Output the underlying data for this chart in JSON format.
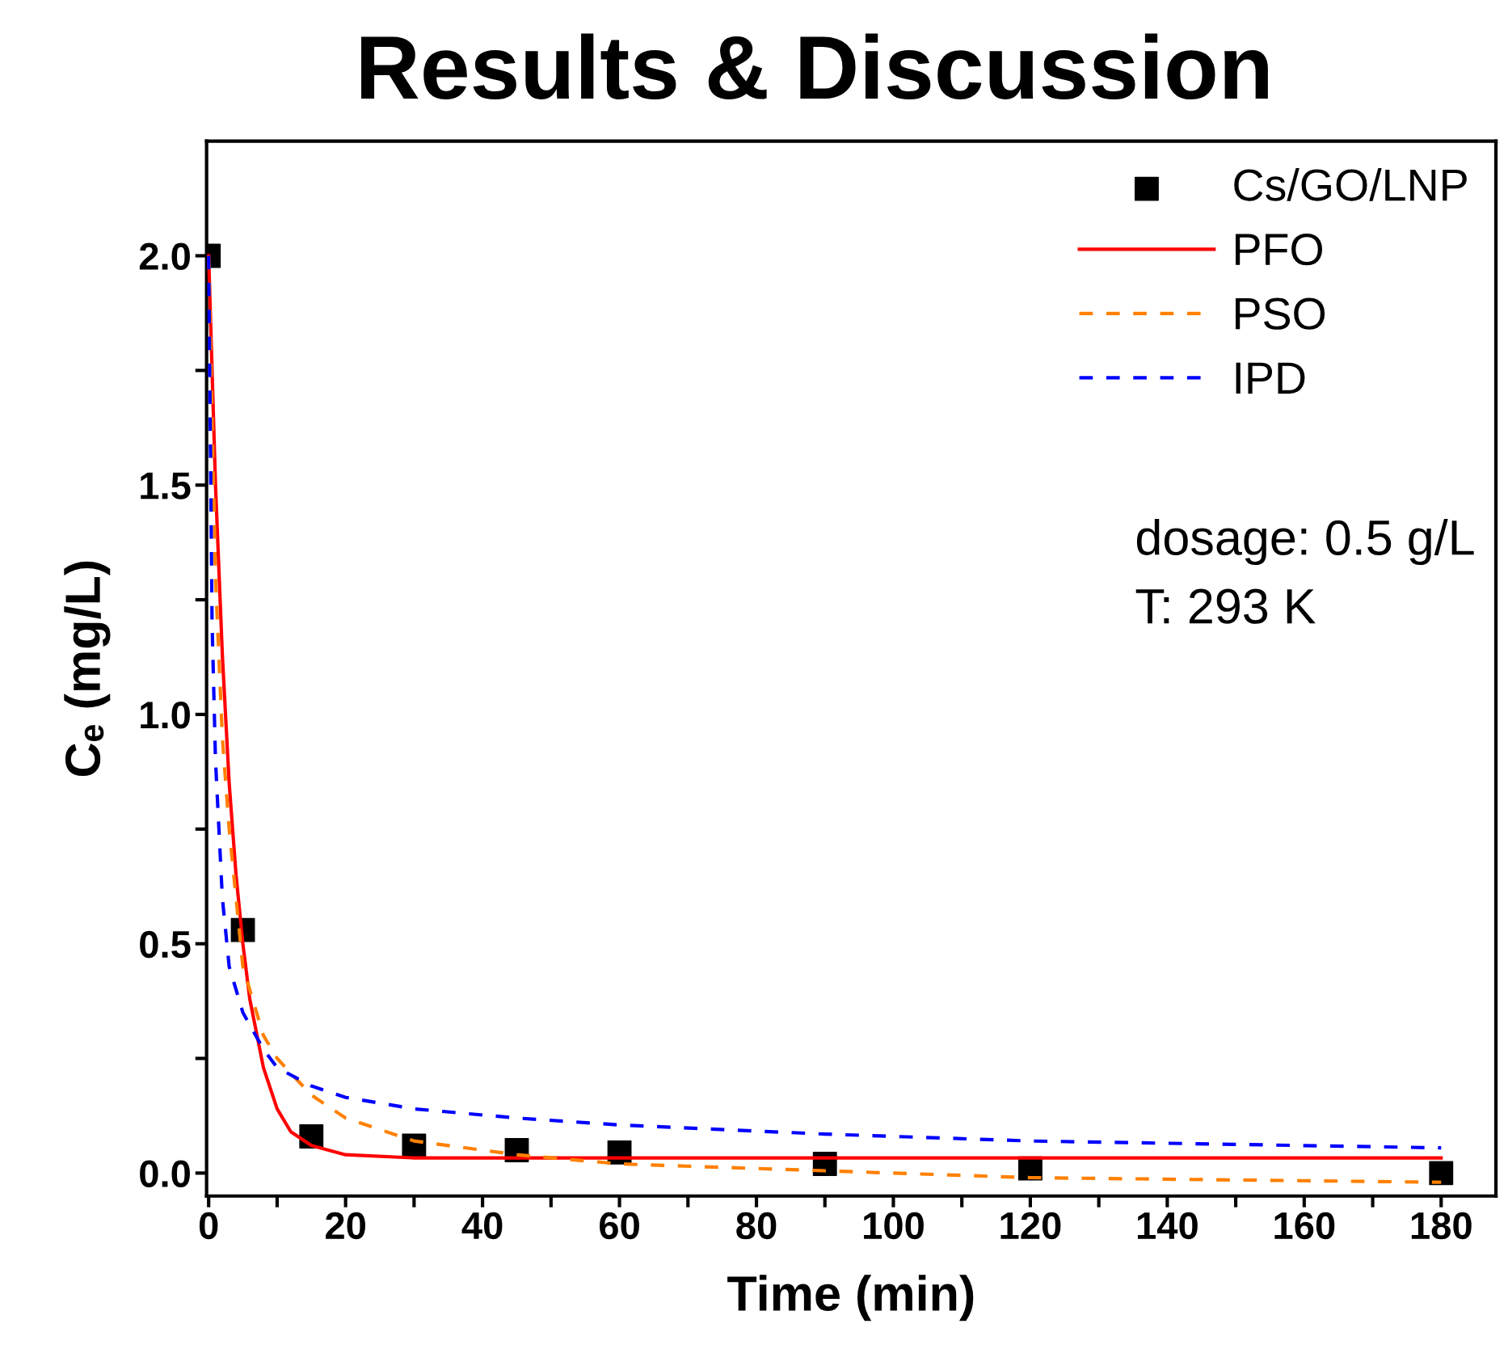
{
  "chart_data": {
    "type": "line",
    "title": "Results & Discussion",
    "xlabel": "Time (min)",
    "ylabel": "Cₑ (mg/L)",
    "xlim": [
      -0.3,
      188
    ],
    "ylim": [
      -0.05,
      2.25
    ],
    "xticks": [
      0,
      {
        "value": 10,
        "label": null
      },
      20,
      {
        "value": 30,
        "label": null
      },
      40,
      {
        "value": 50,
        "label": null
      },
      60,
      {
        "value": 70,
        "label": null
      },
      80,
      {
        "value": 90,
        "label": null
      },
      100,
      {
        "value": 110,
        "label": null
      },
      120,
      {
        "value": 130,
        "label": null
      },
      140,
      {
        "value": 150,
        "label": null
      },
      160,
      {
        "value": 170,
        "label": null
      },
      180
    ],
    "yticks": [
      {
        "value": 0,
        "label": "0.0"
      },
      {
        "value": 0.25,
        "label": null
      },
      {
        "value": 0.5,
        "label": "0.5"
      },
      {
        "value": 0.75,
        "label": null
      },
      {
        "value": 1,
        "label": "1.0"
      },
      {
        "value": 1.25,
        "label": null
      },
      {
        "value": 1.5,
        "label": "1.5"
      },
      {
        "value": 1.75,
        "label": null
      },
      {
        "value": 2,
        "label": "2.0"
      }
    ],
    "grid": false,
    "legend": "top right",
    "annotations": [
      "dosage: 0.5 g/L",
      "T: 293 K"
    ],
    "series": [
      {
        "name": "Cs/GO/LNP",
        "type": "scatter",
        "marker": "square",
        "color": "#000000",
        "x": [
          0,
          5,
          15,
          30,
          45,
          60,
          90,
          120,
          180
        ],
        "values": [
          2.0,
          0.53,
          0.08,
          0.06,
          0.05,
          0.045,
          0.02,
          0.01,
          0.0
        ]
      },
      {
        "name": "PFO",
        "type": "line",
        "line_style": "solid",
        "color": "#ff0000",
        "x": [
          0,
          1,
          2,
          3,
          4,
          5,
          6,
          8,
          10,
          12,
          15,
          20,
          30,
          180
        ],
        "values": [
          2.0,
          1.5,
          1.13,
          0.85,
          0.65,
          0.5,
          0.38,
          0.23,
          0.14,
          0.09,
          0.06,
          0.04,
          0.033,
          0.033
        ]
      },
      {
        "name": "PSO",
        "type": "line",
        "line_style": "dashed",
        "color": "#ff8000",
        "x": [
          0,
          1,
          2,
          3,
          5,
          8,
          10,
          15,
          20,
          30,
          45,
          60,
          90,
          120,
          180
        ],
        "values": [
          2.0,
          1.3,
          0.95,
          0.75,
          0.45,
          0.3,
          0.25,
          0.17,
          0.12,
          0.07,
          0.04,
          0.02,
          0.005,
          -0.01,
          -0.02
        ]
      },
      {
        "name": "IPD",
        "type": "line",
        "line_style": "dashed",
        "color": "#0000ff",
        "x": [
          0,
          0.5,
          1,
          2,
          3,
          5,
          8,
          10,
          15,
          20,
          30,
          45,
          60,
          90,
          120,
          180
        ],
        "values": [
          2.0,
          1.2,
          0.9,
          0.6,
          0.45,
          0.35,
          0.27,
          0.23,
          0.19,
          0.165,
          0.14,
          0.12,
          0.105,
          0.085,
          0.07,
          0.055
        ]
      }
    ]
  }
}
